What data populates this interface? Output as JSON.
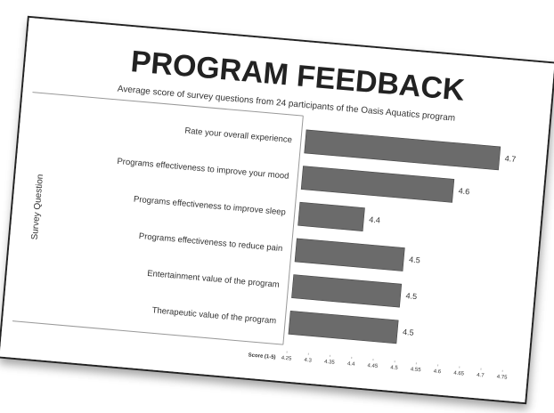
{
  "chart_data": {
    "type": "bar",
    "orientation": "horizontal",
    "title": "PROGRAM FEEDBACK",
    "subtitle": "Average score of survey questions from 24 participants of the Oasis Aquatics program",
    "y_label": "Survey Question",
    "x_label": "Score (1-5)",
    "categories": [
      "Rate your overall experience",
      "Programs effectiveness to improve your mood",
      "Programs effectiveness to improve sleep",
      "Programs effectiveness to reduce pain",
      "Entertainment value of the program",
      "Therapeutic value of the program"
    ],
    "values": [
      4.7,
      4.6,
      4.4,
      4.5,
      4.5,
      4.5
    ],
    "color": "#6b6b6b",
    "xlim": [
      4.25,
      4.75
    ],
    "xticks": [
      4.25,
      4.3,
      4.35,
      4.4,
      4.45,
      4.5,
      4.55,
      4.6,
      4.65,
      4.7,
      4.75
    ],
    "grid": false
  }
}
